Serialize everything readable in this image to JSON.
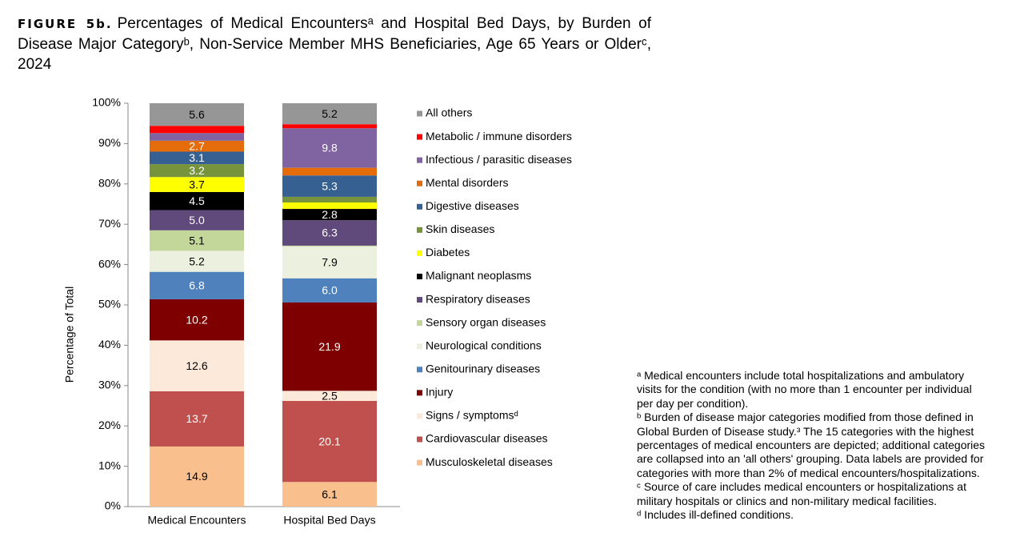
{
  "chart_data": {
    "type": "stacked_bar",
    "figure_label": "FIGURE 5b.",
    "title": "Percentages of Medical Encountersᵃ and Hospital Bed Days, by Burden of Disease Major Categoryᵇ, Non-Service Member MHS Beneficiaries, Age 65 Years or Olderᶜ, 2024",
    "y_label": "Percentage of Total",
    "categories": [
      "Medical Encounters",
      "Hospital Bed Days"
    ],
    "ylim": [
      0,
      100
    ],
    "yticks": [
      {
        "value": 0,
        "label": "0%"
      },
      {
        "value": 10,
        "label": "10%"
      },
      {
        "value": 20,
        "label": "20%"
      },
      {
        "value": 30,
        "label": "30%"
      },
      {
        "value": 40,
        "label": "40%"
      },
      {
        "value": 50,
        "label": "50%"
      },
      {
        "value": 60,
        "label": "60%"
      },
      {
        "value": 70,
        "label": "70%"
      },
      {
        "value": 80,
        "label": "80%"
      },
      {
        "value": 90,
        "label": "90%"
      },
      {
        "value": 100,
        "label": "100%"
      }
    ],
    "series": [
      {
        "name": "Musculoskeletal diseases",
        "color": "#f9c08e",
        "values": [
          14.9,
          6.1
        ],
        "value_labels": [
          "14.9",
          "6.1"
        ]
      },
      {
        "name": "Cardiovascular diseases",
        "color": "#c0504d",
        "values": [
          13.7,
          20.1
        ],
        "value_labels": [
          "13.7",
          "20.1"
        ]
      },
      {
        "name": "Signs / symptomsᵈ",
        "color": "#fde9d9",
        "values": [
          12.6,
          2.5
        ],
        "value_labels": [
          "12.6",
          "2.5"
        ]
      },
      {
        "name": "Injury",
        "color": "#7f0000",
        "values": [
          10.2,
          21.9
        ],
        "value_labels": [
          "10.2",
          "21.9"
        ]
      },
      {
        "name": "Genitourinary diseases",
        "color": "#4f81bd",
        "values": [
          6.8,
          6.0
        ],
        "value_labels": [
          "6.8",
          "6.0"
        ]
      },
      {
        "name": "Neurological conditions",
        "color": "#ebf1de",
        "values": [
          5.2,
          7.9
        ],
        "value_labels": [
          "5.2",
          "7.9"
        ]
      },
      {
        "name": "Sensory organ diseases",
        "color": "#c4d79b",
        "values": [
          5.1,
          0.2
        ],
        "value_labels": [
          "5.1",
          null
        ]
      },
      {
        "name": "Respiratory diseases",
        "color": "#604a7b",
        "values": [
          5.0,
          6.3
        ],
        "value_labels": [
          "5.0",
          "6.3"
        ]
      },
      {
        "name": "Malignant neoplasms",
        "color": "#000000",
        "values": [
          4.5,
          2.8
        ],
        "value_labels": [
          "4.5",
          "2.8"
        ]
      },
      {
        "name": "Diabetes",
        "color": "#ffff00",
        "values": [
          3.7,
          1.6
        ],
        "value_labels": [
          "3.7",
          null
        ]
      },
      {
        "name": "Skin diseases",
        "color": "#77933c",
        "values": [
          3.2,
          1.4
        ],
        "value_labels": [
          "3.2",
          null
        ]
      },
      {
        "name": "Digestive diseases",
        "color": "#376092",
        "values": [
          3.1,
          5.3
        ],
        "value_labels": [
          "3.1",
          "5.3"
        ]
      },
      {
        "name": "Mental disorders",
        "color": "#e46c0a",
        "values": [
          2.7,
          1.9
        ],
        "value_labels": [
          "2.7",
          null
        ]
      },
      {
        "name": "Infectious / parasitic diseases",
        "color": "#8064a2",
        "values": [
          1.9,
          9.8
        ],
        "value_labels": [
          null,
          "9.8"
        ]
      },
      {
        "name": "Metabolic / immune disorders",
        "color": "#ff0000",
        "values": [
          1.8,
          1.0
        ],
        "value_labels": [
          null,
          null
        ]
      },
      {
        "name": "All others",
        "color": "#969696",
        "values": [
          5.6,
          5.2
        ],
        "value_labels": [
          "5.6",
          "5.2"
        ]
      }
    ],
    "footnotes": [
      "ᵃ Medical encounters include total hospitalizations and ambulatory visits for the condition (with no more than 1 encounter per individual per day per condition).",
      "ᵇ Burden of disease major categories modified from those defined in Global Burden of Disease study.³ The 15 categories with the highest percentages of medical encounters are depicted; additional categories are collapsed into an 'all others' grouping. Data labels are provided for categories with more than 2% of medical encounters/hospitalizations.",
      "ᶜ Source of care includes medical encounters or hospitalizations at military hospitals or clinics and non-military medical facilities.",
      "ᵈ Includes ill-defined conditions."
    ]
  }
}
